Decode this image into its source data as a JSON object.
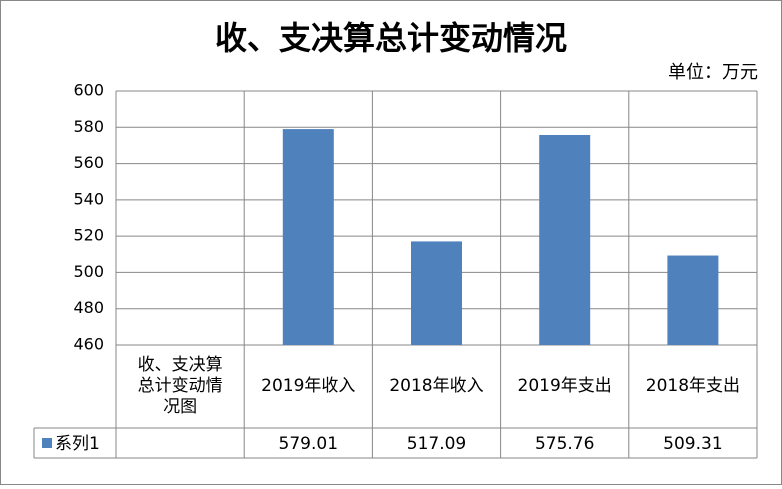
{
  "chart_data": {
    "type": "bar",
    "title": "收、支决算总计变动情况",
    "unit_note": "单位：万元",
    "categories": [
      "收、支决算总计变动情况图",
      "2019年收入",
      "2018年收入",
      "2019年支出",
      "2018年支出"
    ],
    "series": [
      {
        "name": "系列1",
        "color": "#4f81bd",
        "values": [
          null,
          579.01,
          517.09,
          575.76,
          509.31
        ]
      }
    ],
    "ylim": [
      460,
      600
    ],
    "yticks": [
      460,
      480,
      500,
      520,
      540,
      560,
      580,
      600
    ],
    "grid": true
  }
}
